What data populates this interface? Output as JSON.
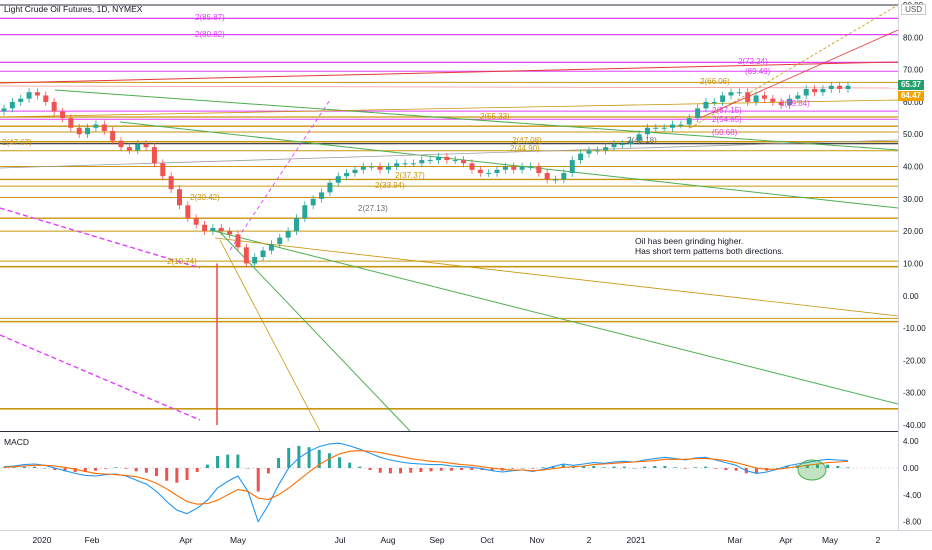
{
  "header": {
    "symbol_title": "Light Crude Oil Futures, 1D, NYMEX",
    "currency": "USD"
  },
  "note": {
    "line1": "Oil has been grinding higher.",
    "line2": "Has short term patterns both directions."
  },
  "macd_label": "MACD",
  "price_tags": {
    "last": "65.37",
    "prev": "64.47",
    "last_color": "#22a06b",
    "prev_color": "#f0a400"
  },
  "colors": {
    "up_candle": "#26a69a",
    "down_candle": "#ef5350",
    "gold": "#c8960c",
    "magenta": "#e040fb",
    "green_line": "#4caf50",
    "macd_line": "#2196f3",
    "signal_line": "#ff6d00"
  },
  "chart_data": {
    "type": "candlestick",
    "title": "Light Crude Oil Futures, 1D, NYMEX",
    "x_tick_labels": [
      "2020",
      "Feb",
      "Apr",
      "May",
      "Jul",
      "Aug",
      "Sep",
      "Oct",
      "Nov",
      "2",
      "2021",
      "Mar",
      "Apr",
      "May",
      "2"
    ],
    "y_ticks": [
      90,
      80,
      70,
      60,
      50,
      40,
      30,
      20,
      10,
      0,
      -10,
      -20,
      -30,
      -40
    ],
    "ylim": [
      -40,
      90
    ],
    "macd_ticks": [
      4,
      0,
      -4,
      -8
    ],
    "macd_tick_labels": [
      "4.00",
      "0.00",
      "-4.00",
      "-8.00"
    ],
    "level_labels": [
      {
        "text": "2(85.87)",
        "color": "magenta"
      },
      {
        "text": "2(80.82)",
        "color": "magenta"
      },
      {
        "text": "2(72.24)",
        "color": "magenta"
      },
      {
        "text": "(69.49)",
        "color": "magenta"
      },
      {
        "text": "2(66.06)",
        "color": "gold"
      },
      {
        "text": "2(57.15)",
        "color": "magenta"
      },
      {
        "text": "2(55.33)",
        "color": "gold"
      },
      {
        "text": "2(54.65)",
        "color": "magenta"
      },
      {
        "text": "(50.68)",
        "color": "magenta"
      },
      {
        "text": "2(47.67)",
        "color": "gold"
      },
      {
        "text": "2(47.08)",
        "color": "gold"
      },
      {
        "text": "2(44.90)",
        "color": "gold"
      },
      {
        "text": "2(48.18)",
        "color": "gray"
      },
      {
        "text": "2(37.37)",
        "color": "gold"
      },
      {
        "text": "2(33.94)",
        "color": "gold"
      },
      {
        "text": "2(30.42)",
        "color": "gold"
      },
      {
        "text": "2(27.13)",
        "color": "gray"
      },
      {
        "text": "2(10.74)",
        "color": "gold"
      },
      {
        "text": "2(59.84)",
        "color": "magenta"
      }
    ],
    "series": [
      {
        "name": "price",
        "values": [
          58,
          60,
          61,
          63,
          62,
          60,
          57,
          55,
          52,
          50,
          52,
          53,
          51,
          48,
          46,
          45,
          47,
          46,
          41,
          37,
          33,
          28,
          24,
          22,
          20,
          21,
          20,
          19,
          15,
          10,
          12,
          14,
          16,
          18,
          20,
          24,
          28,
          30,
          32,
          35,
          37,
          38,
          39,
          40,
          40,
          39,
          40,
          41,
          41,
          41,
          42,
          42,
          43,
          42,
          42,
          41,
          39,
          38,
          38,
          39,
          40,
          39,
          40,
          40,
          38,
          36,
          36,
          38,
          42,
          44,
          45,
          45,
          46,
          47,
          47,
          48,
          50,
          52,
          52,
          52,
          53,
          53,
          55,
          58,
          60,
          60,
          62,
          63,
          63,
          60,
          62,
          61,
          60,
          59,
          61,
          62,
          64,
          63,
          64,
          65,
          64,
          65
        ]
      },
      {
        "name": "MACD",
        "values": [
          0.2,
          0.3,
          0.5,
          0.6,
          0.4,
          0.0,
          -0.4,
          -0.8,
          -1.1,
          -1.2,
          -1.0,
          -0.9,
          -1.2,
          -1.8,
          -2.4,
          -3.5,
          -5.0,
          -6.3,
          -6.8,
          -6.0,
          -4.8,
          -3.0,
          -2.0,
          -1.2,
          -3.5,
          -8.0,
          -5.5,
          -2.5,
          0.0,
          1.5,
          2.5,
          3.2,
          3.6,
          3.7,
          3.3,
          2.8,
          2.2,
          1.6,
          1.2,
          0.9,
          0.7,
          0.6,
          0.5,
          0.5,
          0.3,
          0.2,
          0.1,
          -0.1,
          -0.4,
          -0.6,
          -0.4,
          -0.3,
          -0.5,
          -0.2,
          0.2,
          0.6,
          0.4,
          0.6,
          0.8,
          0.7,
          0.9,
          1.0,
          0.9,
          1.2,
          1.4,
          1.6,
          1.4,
          1.2,
          1.5,
          1.6,
          1.2,
          0.8,
          0.4,
          -0.4,
          -0.8,
          -0.6,
          -0.2,
          0.3,
          0.6,
          0.8,
          1.1,
          1.3,
          1.2,
          1.1
        ]
      },
      {
        "name": "Signal",
        "values": [
          0.1,
          0.2,
          0.3,
          0.4,
          0.4,
          0.3,
          0.1,
          -0.2,
          -0.5,
          -0.8,
          -0.9,
          -1.0,
          -1.1,
          -1.3,
          -1.7,
          -2.3,
          -3.1,
          -4.1,
          -5.0,
          -5.4,
          -5.3,
          -4.8,
          -4.0,
          -3.2,
          -3.5,
          -4.5,
          -4.7,
          -4.0,
          -3.0,
          -1.8,
          -0.6,
          0.5,
          1.4,
          2.1,
          2.5,
          2.6,
          2.5,
          2.3,
          2.0,
          1.7,
          1.4,
          1.2,
          1.0,
          0.9,
          0.7,
          0.5,
          0.4,
          0.2,
          0.0,
          -0.2,
          -0.3,
          -0.3,
          -0.4,
          -0.3,
          -0.1,
          0.1,
          0.2,
          0.3,
          0.5,
          0.6,
          0.7,
          0.8,
          0.9,
          1.0,
          1.1,
          1.3,
          1.3,
          1.3,
          1.4,
          1.4,
          1.3,
          1.1,
          0.8,
          0.4,
          0.0,
          -0.2,
          -0.2,
          0.0,
          0.2,
          0.4,
          0.6,
          0.8,
          0.9,
          1.0
        ]
      }
    ]
  }
}
